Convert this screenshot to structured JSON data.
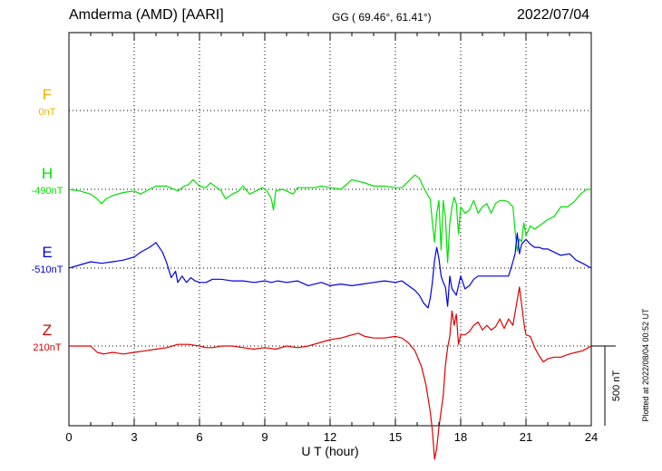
{
  "header": {
    "station": "Amderma (AMD)  [AARI]",
    "coords": "GG ( 69.46°,  61.41°)",
    "date": "2022/07/04"
  },
  "plotted_note": "Plotted at 2022/08/04 00:52 UT",
  "scale_label": "500 nT",
  "colors": {
    "F": "#f0b000",
    "H": "#00e000",
    "E": "#0000e0",
    "Z": "#e00000",
    "axis": "#000000"
  },
  "chart_data": {
    "type": "line",
    "xlabel": "U T (hour)",
    "xlim": [
      0,
      24
    ],
    "xticks": [
      "0",
      "3",
      "6",
      "9",
      "12",
      "15",
      "18",
      "21",
      "24"
    ],
    "grid": true,
    "series": [
      {
        "name": "F",
        "baseline_label": "0nT",
        "baseline": 0,
        "x": [],
        "values": []
      },
      {
        "name": "H",
        "baseline_label": "-490nT",
        "baseline": -490,
        "x": [
          0,
          0.5,
          1,
          1.3,
          1.5,
          1.7,
          2,
          2.5,
          3,
          3.3,
          3.7,
          4,
          4.5,
          5,
          5.3,
          5.5,
          5.7,
          6,
          6.3,
          6.5,
          6.8,
          7,
          7.2,
          7.5,
          7.8,
          8,
          8.3,
          8.6,
          8.9,
          9.1,
          9.3,
          9.4,
          9.5,
          9.8,
          10,
          10.3,
          10.5,
          11,
          11.3,
          11.6,
          12,
          12.5,
          13,
          13.3,
          13.6,
          14,
          14.5,
          15,
          15.3,
          15.6,
          15.9,
          16.1,
          16.3,
          16.5,
          16.6,
          16.7,
          16.8,
          16.9,
          17,
          17.1,
          17.2,
          17.3,
          17.4,
          17.5,
          17.6,
          17.7,
          17.8,
          17.9,
          18,
          18.2,
          18.4,
          18.6,
          18.8,
          19,
          19.2,
          19.4,
          19.6,
          19.8,
          20,
          20.2,
          20.4,
          20.5,
          20.6,
          20.7,
          20.8,
          20.9,
          21,
          21.2,
          21.4,
          21.6,
          21.8,
          22,
          22.3,
          22.6,
          22.9,
          23.2,
          23.5,
          23.8,
          24
        ],
        "values": [
          -490,
          -500,
          -520,
          -550,
          -580,
          -550,
          -530,
          -510,
          -500,
          -520,
          -490,
          -470,
          -470,
          -500,
          -470,
          -460,
          -430,
          -470,
          -480,
          -450,
          -480,
          -500,
          -550,
          -520,
          -500,
          -470,
          -520,
          -500,
          -480,
          -500,
          -550,
          -620,
          -500,
          -490,
          -500,
          -520,
          -480,
          -480,
          -480,
          -470,
          -480,
          -490,
          -430,
          -440,
          -450,
          -470,
          -470,
          -480,
          -480,
          -440,
          -400,
          -420,
          -480,
          -530,
          -550,
          -700,
          -820,
          -640,
          -560,
          -870,
          -560,
          -670,
          -950,
          -700,
          -600,
          -540,
          -580,
          -770,
          -600,
          -640,
          -620,
          -560,
          -640,
          -600,
          -580,
          -640,
          -580,
          -560,
          -560,
          -570,
          -600,
          -750,
          -880,
          -800,
          -820,
          -700,
          -780,
          -720,
          -740,
          -720,
          -700,
          -680,
          -660,
          -600,
          -600,
          -570,
          -520,
          -490,
          -490
        ]
      },
      {
        "name": "E",
        "baseline_label": "-510nT",
        "baseline": -510,
        "x": [
          0,
          0.5,
          1,
          1.5,
          2,
          2.5,
          3,
          3.3,
          3.7,
          4,
          4.3,
          4.5,
          4.7,
          4.9,
          5,
          5.2,
          5.4,
          5.6,
          5.8,
          6,
          6.3,
          6.6,
          7,
          7.5,
          8,
          8.5,
          9,
          9.3,
          9.6,
          10,
          10.5,
          11,
          11.3,
          11.6,
          12,
          12.5,
          13,
          13.5,
          14,
          14.5,
          15,
          15.3,
          15.6,
          15.9,
          16.1,
          16.3,
          16.5,
          16.6,
          16.7,
          16.8,
          16.9,
          17,
          17.1,
          17.2,
          17.3,
          17.4,
          17.5,
          17.6,
          17.8,
          18,
          18.2,
          18.4,
          18.6,
          18.8,
          19,
          19.5,
          20,
          20.2,
          20.4,
          20.5,
          20.6,
          20.7,
          20.8,
          21,
          21.2,
          21.4,
          21.6,
          21.8,
          22,
          22.3,
          22.6,
          23,
          23.3,
          23.6,
          24
        ],
        "values": [
          -510,
          -490,
          -470,
          -480,
          -470,
          -460,
          -440,
          -410,
          -380,
          -350,
          -410,
          -480,
          -570,
          -530,
          -600,
          -560,
          -600,
          -570,
          -590,
          -600,
          -600,
          -580,
          -580,
          -590,
          -590,
          -600,
          -590,
          -600,
          -590,
          -600,
          -590,
          -620,
          -610,
          -600,
          -620,
          -610,
          -620,
          -610,
          -600,
          -590,
          -600,
          -590,
          -620,
          -650,
          -680,
          -730,
          -760,
          -700,
          -600,
          -460,
          -380,
          -450,
          -560,
          -600,
          -630,
          -750,
          -560,
          -640,
          -680,
          -560,
          -640,
          -620,
          -580,
          -560,
          -560,
          -560,
          -560,
          -560,
          -470,
          -420,
          -290,
          -420,
          -360,
          -330,
          -360,
          -380,
          -380,
          -390,
          -390,
          -410,
          -430,
          -420,
          -460,
          -480,
          -510
        ]
      },
      {
        "name": "Z",
        "baseline_label": "210nT",
        "baseline": 210,
        "x": [
          0,
          0.5,
          1,
          1.3,
          1.6,
          2,
          2.5,
          3,
          3.5,
          4,
          4.5,
          5,
          5.5,
          6,
          6.3,
          6.6,
          7,
          7.5,
          8,
          8.5,
          9,
          9.5,
          10,
          10.5,
          11,
          11.5,
          12,
          12.5,
          13,
          13.3,
          13.6,
          14,
          14.5,
          15,
          15.3,
          15.6,
          15.9,
          16.2,
          16.4,
          16.6,
          16.7,
          16.8,
          16.9,
          17,
          17.1,
          17.2,
          17.3,
          17.4,
          17.5,
          17.6,
          17.7,
          17.8,
          17.9,
          18,
          18.2,
          18.4,
          18.6,
          18.8,
          19,
          19.2,
          19.4,
          19.6,
          19.8,
          20,
          20.2,
          20.4,
          20.6,
          20.7,
          20.8,
          20.9,
          21,
          21.2,
          21.4,
          21.6,
          21.8,
          22,
          22.3,
          22.6,
          23,
          23.3,
          23.6,
          24
        ],
        "values": [
          210,
          210,
          210,
          170,
          160,
          170,
          160,
          170,
          180,
          190,
          200,
          220,
          220,
          210,
          200,
          200,
          210,
          210,
          200,
          190,
          200,
          190,
          210,
          200,
          210,
          230,
          250,
          260,
          280,
          290,
          270,
          260,
          260,
          270,
          260,
          230,
          180,
          80,
          -30,
          -200,
          -320,
          -500,
          -430,
          -300,
          -200,
          -100,
          90,
          200,
          270,
          430,
          340,
          410,
          220,
          280,
          280,
          300,
          340,
          360,
          310,
          340,
          310,
          330,
          380,
          320,
          380,
          340,
          500,
          580,
          470,
          360,
          280,
          270,
          200,
          150,
          110,
          130,
          140,
          140,
          160,
          170,
          180,
          210
        ]
      }
    ]
  }
}
